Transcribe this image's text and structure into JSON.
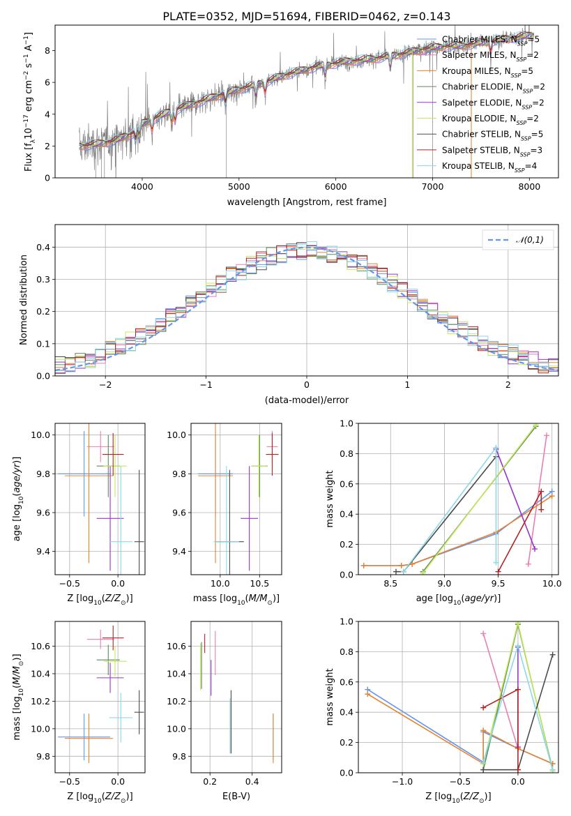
{
  "figure": {
    "title": "PLATE=0352, MJD=51694, FIBERID=0462, z=0.143"
  },
  "models": [
    {
      "imf": "Chabrier",
      "lib": "MILES",
      "n": "5",
      "color": "#6495ed"
    },
    {
      "imf": "Salpeter",
      "lib": "MILES",
      "n": "2",
      "color": "#e77fb0"
    },
    {
      "imf": "Kroupa",
      "lib": "MILES",
      "n": "5",
      "color": "#e8812b"
    },
    {
      "imf": "Chabrier",
      "lib": "ELODIE",
      "n": "2",
      "color": "#5a8a5a"
    },
    {
      "imf": "Salpeter",
      "lib": "ELODIE",
      "n": "2",
      "color": "#9932cc"
    },
    {
      "imf": "Kroupa",
      "lib": "ELODIE",
      "n": "2",
      "color": "#c5e85b"
    },
    {
      "imf": "Chabrier",
      "lib": "STELIB",
      "n": "5",
      "color": "#4a4a4a"
    },
    {
      "imf": "Salpeter",
      "lib": "STELIB",
      "n": "3",
      "color": "#b22222"
    },
    {
      "imf": "Kroupa",
      "lib": "STELIB",
      "n": "4",
      "color": "#8ad8e8"
    }
  ],
  "chart_data": [
    {
      "id": "spectrum",
      "type": "line",
      "xlabel": "wavelength [Angstrom, rest frame]",
      "ylabel": "Flux [f_λ 10^-17 erg cm^-2 s^-1 A^-1]",
      "xlim": [
        3100,
        8300
      ],
      "ylim": [
        0,
        9.6
      ],
      "xticks": [
        4000,
        5000,
        6000,
        7000,
        8000
      ],
      "yticks": [
        0,
        2,
        4,
        6,
        8
      ],
      "grid": false,
      "legend": "right",
      "data_series": {
        "name": "data",
        "color": "#808080",
        "x_range": [
          3350,
          8050
        ]
      },
      "continuum_points": [
        [
          3350,
          2.0
        ],
        [
          3500,
          2.1
        ],
        [
          3700,
          2.3
        ],
        [
          3900,
          2.8
        ],
        [
          4000,
          3.4
        ],
        [
          4300,
          4.2
        ],
        [
          4600,
          4.8
        ],
        [
          4900,
          5.4
        ],
        [
          5200,
          5.9
        ],
        [
          5500,
          6.5
        ],
        [
          5800,
          7.0
        ],
        [
          6100,
          7.3
        ],
        [
          6400,
          7.5
        ],
        [
          6700,
          7.8
        ],
        [
          7000,
          8.2
        ],
        [
          7300,
          8.3
        ],
        [
          7600,
          8.6
        ],
        [
          8050,
          9.0
        ]
      ]
    },
    {
      "id": "residuals",
      "type": "histogram",
      "xlabel": "(data-model)/error",
      "ylabel": "Normed distribution",
      "xlim": [
        -2.5,
        2.5
      ],
      "ylim": [
        0,
        0.47
      ],
      "xticks": [
        -2,
        -1,
        0,
        1,
        2
      ],
      "yticks": [
        0.0,
        0.1,
        0.2,
        0.3,
        0.4
      ],
      "grid": true,
      "legend": "top-right",
      "reference": {
        "name": "𝒩(0,1)",
        "color": "#6495ed",
        "style": "dashed"
      },
      "bin_width": 0.1
    },
    {
      "id": "age_vs_Z",
      "type": "errorbar",
      "xlabel": "Z [log10(Z/Z⊙)]",
      "ylabel": "age [log10(age/yr)]",
      "xlim": [
        -0.65,
        0.28
      ],
      "ylim": [
        9.28,
        10.06
      ],
      "xticks": [
        -0.5,
        0.0
      ],
      "yticks": [
        9.4,
        9.6,
        9.8,
        10.0
      ],
      "grid": true,
      "points": [
        {
          "x": -0.35,
          "y": 9.8,
          "xerr": 0.27,
          "yerr": 0.22
        },
        {
          "x": -0.18,
          "y": 9.94,
          "xerr": 0.14,
          "yerr": 0.08
        },
        {
          "x": -0.3,
          "y": 9.79,
          "xerr": 0.25,
          "yerr": 0.45
        },
        {
          "x": -0.1,
          "y": 9.84,
          "xerr": 0.12,
          "yerr": 0.16
        },
        {
          "x": -0.08,
          "y": 9.57,
          "xerr": 0.14,
          "yerr": 0.27
        },
        {
          "x": -0.03,
          "y": 9.84,
          "xerr": 0.12,
          "yerr": 0.16
        },
        {
          "x": 0.22,
          "y": 9.45,
          "xerr": 0.05,
          "yerr": 0.37
        },
        {
          "x": -0.05,
          "y": 9.9,
          "xerr": 0.11,
          "yerr": 0.11
        },
        {
          "x": 0.03,
          "y": 9.45,
          "xerr": 0.12,
          "yerr": 0.39
        }
      ]
    },
    {
      "id": "age_vs_mass",
      "type": "errorbar",
      "xlabel": "mass [log10(M/M⊙)]",
      "ylabel": "",
      "xlim": [
        9.63,
        10.78
      ],
      "ylim": [
        9.28,
        10.06
      ],
      "xticks": [
        10.0,
        10.5
      ],
      "yticks": [
        9.4,
        9.6,
        9.8,
        10.0
      ],
      "grid": true,
      "points": [
        {
          "x": 9.94,
          "y": 9.8,
          "xerr": 0.22,
          "yerr": 0.22
        },
        {
          "x": 10.66,
          "y": 9.94,
          "xerr": 0.07,
          "yerr": 0.08
        },
        {
          "x": 9.94,
          "y": 9.79,
          "xerr": 0.22,
          "yerr": 0.45
        },
        {
          "x": 10.5,
          "y": 9.84,
          "xerr": 0.1,
          "yerr": 0.16
        },
        {
          "x": 10.37,
          "y": 9.57,
          "xerr": 0.11,
          "yerr": 0.27
        },
        {
          "x": 10.49,
          "y": 9.84,
          "xerr": 0.1,
          "yerr": 0.16
        },
        {
          "x": 10.12,
          "y": 9.45,
          "xerr": 0.18,
          "yerr": 0.37
        },
        {
          "x": 10.66,
          "y": 9.9,
          "xerr": 0.08,
          "yerr": 0.11
        },
        {
          "x": 10.08,
          "y": 9.45,
          "xerr": 0.16,
          "yerr": 0.39
        }
      ]
    },
    {
      "id": "weight_vs_age",
      "type": "line",
      "xlabel": "age [log10(age/yr)]",
      "ylabel": "mass weight",
      "xlim": [
        8.2,
        10.06
      ],
      "ylim": [
        0,
        1.0
      ],
      "xticks": [
        8.5,
        9.0,
        9.5,
        10.0
      ],
      "yticks": [
        0.0,
        0.2,
        0.4,
        0.6,
        0.8,
        1.0
      ],
      "grid": true,
      "series": [
        {
          "model": 0,
          "x": [
            8.25,
            8.6,
            8.7,
            9.48,
            10.0
          ],
          "y": [
            0.06,
            0.06,
            0.07,
            0.27,
            0.55
          ]
        },
        {
          "model": 1,
          "x": [
            9.78,
            9.95
          ],
          "y": [
            0.07,
            0.92
          ]
        },
        {
          "model": 2,
          "x": [
            8.25,
            8.6,
            8.7,
            9.48,
            10.0
          ],
          "y": [
            0.06,
            0.06,
            0.07,
            0.28,
            0.52
          ]
        },
        {
          "model": 3,
          "x": [
            8.8,
            9.85
          ],
          "y": [
            0.02,
            0.98
          ]
        },
        {
          "model": 4,
          "x": [
            9.48,
            9.84
          ],
          "y": [
            0.83,
            0.17
          ]
        },
        {
          "model": 5,
          "x": [
            8.8,
            9.85
          ],
          "y": [
            0.01,
            0.99
          ]
        },
        {
          "model": 6,
          "x": [
            8.55,
            8.62,
            9.48
          ],
          "y": [
            0.02,
            0.02,
            0.78
          ]
        },
        {
          "model": 7,
          "x": [
            9.5,
            9.9,
            9.9
          ],
          "y": [
            0.02,
            0.55,
            0.43
          ]
        },
        {
          "model": 8,
          "x": [
            8.62,
            9.48,
            9.48
          ],
          "y": [
            0.02,
            0.84,
            0.08
          ]
        }
      ]
    },
    {
      "id": "mass_vs_Z",
      "type": "errorbar",
      "xlabel": "Z [log10(Z/Z⊙)]",
      "ylabel": "mass [log10(M/M⊙)]",
      "xlim": [
        -0.65,
        0.28
      ],
      "ylim": [
        9.68,
        10.78
      ],
      "xticks": [
        -0.5,
        0.0
      ],
      "yticks": [
        9.8,
        10.0,
        10.2,
        10.4,
        10.6
      ],
      "grid": true,
      "points": [
        {
          "x": -0.35,
          "y": 9.94,
          "xerr": 0.27,
          "yerr": 0.17
        },
        {
          "x": -0.18,
          "y": 10.65,
          "xerr": 0.14,
          "yerr": 0.07
        },
        {
          "x": -0.3,
          "y": 9.93,
          "xerr": 0.25,
          "yerr": 0.18
        },
        {
          "x": -0.1,
          "y": 10.5,
          "xerr": 0.12,
          "yerr": 0.11
        },
        {
          "x": -0.08,
          "y": 10.37,
          "xerr": 0.14,
          "yerr": 0.11
        },
        {
          "x": -0.03,
          "y": 10.49,
          "xerr": 0.12,
          "yerr": 0.11
        },
        {
          "x": 0.22,
          "y": 10.12,
          "xerr": 0.05,
          "yerr": 0.16
        },
        {
          "x": -0.05,
          "y": 10.66,
          "xerr": 0.11,
          "yerr": 0.09
        },
        {
          "x": 0.03,
          "y": 10.08,
          "xerr": 0.12,
          "yerr": 0.18
        }
      ]
    },
    {
      "id": "mass_vs_ebv",
      "type": "errorbar",
      "xlabel": "E(B-V)",
      "ylabel": "",
      "xlim": [
        0.11,
        0.54
      ],
      "ylim": [
        9.68,
        10.78
      ],
      "xticks": [
        0.2,
        0.4
      ],
      "yticks": [
        9.8,
        10.0,
        10.2,
        10.4,
        10.6
      ],
      "grid": true,
      "points": [
        {
          "x": 0.5,
          "y": 9.94,
          "xerr": 0.0,
          "yerr": 0.17
        },
        {
          "x": 0.225,
          "y": 10.55,
          "xerr": 0.0,
          "yerr": 0.16
        },
        {
          "x": 0.5,
          "y": 9.93,
          "xerr": 0.0,
          "yerr": 0.18
        },
        {
          "x": 0.16,
          "y": 10.46,
          "xerr": 0.0,
          "yerr": 0.17
        },
        {
          "x": 0.205,
          "y": 10.37,
          "xerr": 0.0,
          "yerr": 0.13
        },
        {
          "x": 0.155,
          "y": 10.45,
          "xerr": 0.0,
          "yerr": 0.17
        },
        {
          "x": 0.3,
          "y": 10.05,
          "xerr": 0.0,
          "yerr": 0.23
        },
        {
          "x": 0.175,
          "y": 10.62,
          "xerr": 0.0,
          "yerr": 0.07
        },
        {
          "x": 0.295,
          "y": 10.02,
          "xerr": 0.0,
          "yerr": 0.2
        }
      ]
    },
    {
      "id": "weight_vs_Z",
      "type": "line",
      "xlabel": "Z [log10(Z/Z⊙)]",
      "ylabel": "mass weight",
      "xlim": [
        -1.38,
        0.35
      ],
      "ylim": [
        0,
        1.0
      ],
      "xticks": [
        -1.0,
        -0.5,
        0.0
      ],
      "yticks": [
        0.0,
        0.2,
        0.4,
        0.6,
        0.8,
        1.0
      ],
      "grid": true,
      "series": [
        {
          "model": 0,
          "x": [
            -1.3,
            -0.3,
            -0.3,
            0.0,
            0.3
          ],
          "y": [
            0.55,
            0.07,
            0.27,
            0.16,
            0.06
          ]
        },
        {
          "model": 1,
          "x": [
            -0.3,
            0.0
          ],
          "y": [
            0.92,
            0.16
          ]
        },
        {
          "model": 2,
          "x": [
            -1.3,
            -0.3,
            -0.3,
            0.0,
            0.3
          ],
          "y": [
            0.52,
            0.06,
            0.28,
            0.16,
            0.06
          ]
        },
        {
          "model": 3,
          "x": [
            -0.3,
            0.0,
            0.3
          ],
          "y": [
            0.02,
            0.98,
            0.02
          ]
        },
        {
          "model": 4,
          "x": [
            0.0,
            0.0
          ],
          "y": [
            0.17,
            0.83
          ]
        },
        {
          "model": 5,
          "x": [
            -0.3,
            0.0,
            0.3
          ],
          "y": [
            0.06,
            0.99,
            0.01
          ]
        },
        {
          "model": 6,
          "x": [
            -0.3,
            0.0,
            0.3
          ],
          "y": [
            0.02,
            0.02,
            0.78
          ]
        },
        {
          "model": 7,
          "x": [
            -0.3,
            0.0,
            0.0
          ],
          "y": [
            0.43,
            0.55,
            0.02
          ]
        },
        {
          "model": 8,
          "x": [
            -0.3,
            0.0,
            0.3
          ],
          "y": [
            0.07,
            0.84,
            0.02
          ]
        }
      ]
    }
  ]
}
